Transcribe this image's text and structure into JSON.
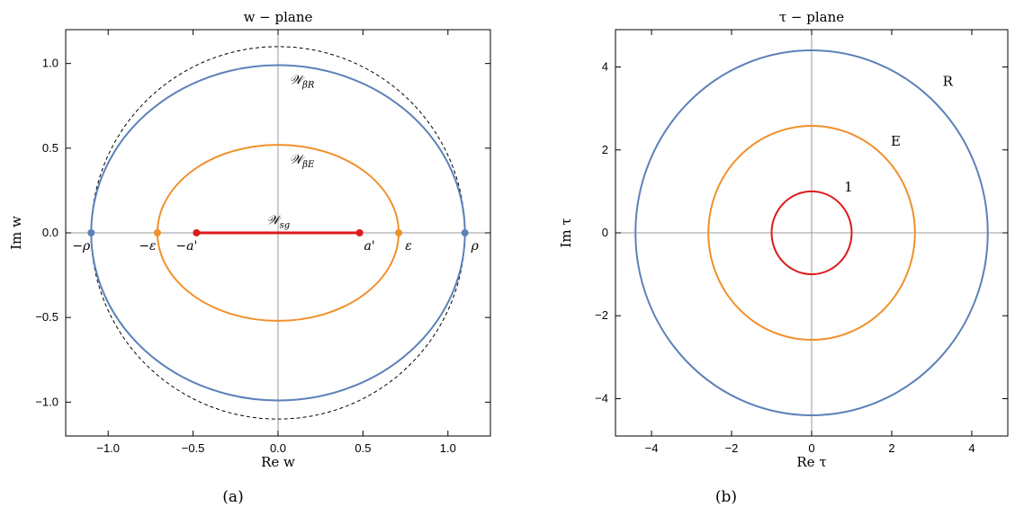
{
  "colors": {
    "blue": "#5c81b8",
    "orange": "#f0902a",
    "red": "#dd1a1a",
    "dashed": "#000000"
  },
  "chart_data": [
    {
      "type": "line",
      "title": "w − plane",
      "xlabel": "Re w",
      "ylabel": "Im w",
      "caption": "(a)",
      "xlim": [
        -1.25,
        1.25
      ],
      "ylim": [
        -1.2,
        1.2
      ],
      "xticks": [
        -1.0,
        -0.5,
        0.0,
        0.5,
        1.0
      ],
      "xtick_labels": [
        "−1.0",
        "−0.5",
        "0.0",
        "0.5",
        "1.0"
      ],
      "yticks": [
        -1.0,
        -0.5,
        0.0,
        0.5,
        1.0
      ],
      "ytick_labels": [
        "−1.0",
        "−0.5",
        "0.0",
        "0.5",
        "1.0"
      ],
      "series": [
        {
          "shape": "ellipse",
          "rx": 1.1,
          "ry": 1.1,
          "color": "#000000",
          "dashed": true
        },
        {
          "name": "𝒲βR",
          "shape": "ellipse",
          "rx": 1.1,
          "ry": 0.99,
          "color": "#5c81b8"
        },
        {
          "name": "𝒲βE",
          "shape": "ellipse",
          "rx": 0.71,
          "ry": 0.52,
          "color": "#f0902a"
        },
        {
          "name": "𝒲sg",
          "shape": "segment",
          "x": [
            -0.48,
            0.48
          ],
          "y": [
            0,
            0
          ],
          "color": "#dd1a1a"
        }
      ],
      "curve_labels": [
        {
          "base": "𝒲",
          "sub": "βR",
          "x": 0.14,
          "y": 0.88
        },
        {
          "base": "𝒲",
          "sub": "βE",
          "x": 0.14,
          "y": 0.41
        },
        {
          "base": "𝒲",
          "sub": "sg",
          "x": 0.0,
          "y": 0.05
        }
      ],
      "points": [
        {
          "label": "−ρ",
          "x": -1.1,
          "y": 0,
          "color": "#5c81b8"
        },
        {
          "label": "ρ",
          "x": 1.1,
          "y": 0,
          "color": "#5c81b8"
        },
        {
          "label": "−ε",
          "x": -0.71,
          "y": 0,
          "color": "#f0902a"
        },
        {
          "label": "ε",
          "x": 0.71,
          "y": 0,
          "color": "#f0902a"
        },
        {
          "label": "−a'",
          "x": -0.48,
          "y": 0,
          "color": "#dd1a1a"
        },
        {
          "label": "a'",
          "x": 0.48,
          "y": 0,
          "color": "#dd1a1a"
        }
      ]
    },
    {
      "type": "line",
      "title": "τ − plane",
      "xlabel": "Re τ",
      "ylabel": "Im τ",
      "caption": "(b)",
      "xlim": [
        -4.9,
        4.9
      ],
      "ylim": [
        -4.9,
        4.9
      ],
      "xticks": [
        -4,
        -2,
        0,
        2,
        4
      ],
      "xtick_labels": [
        "−4",
        "−2",
        "0",
        "2",
        "4"
      ],
      "yticks": [
        -4,
        -2,
        0,
        2,
        4
      ],
      "ytick_labels": [
        "−4",
        "−2",
        "0",
        "2",
        "4"
      ],
      "series": [
        {
          "name": "R",
          "shape": "circle",
          "r": 4.4,
          "color": "#5c81b8"
        },
        {
          "name": "E",
          "shape": "circle",
          "r": 2.58,
          "color": "#f0902a"
        },
        {
          "name": "1",
          "shape": "circle",
          "r": 1.0,
          "color": "#dd1a1a"
        }
      ],
      "curve_labels": [
        {
          "text": "R",
          "x": 3.4,
          "y": 3.55
        },
        {
          "text": "E",
          "x": 2.1,
          "y": 2.1
        },
        {
          "text": "1",
          "x": 0.92,
          "y": 1.0
        }
      ]
    }
  ]
}
